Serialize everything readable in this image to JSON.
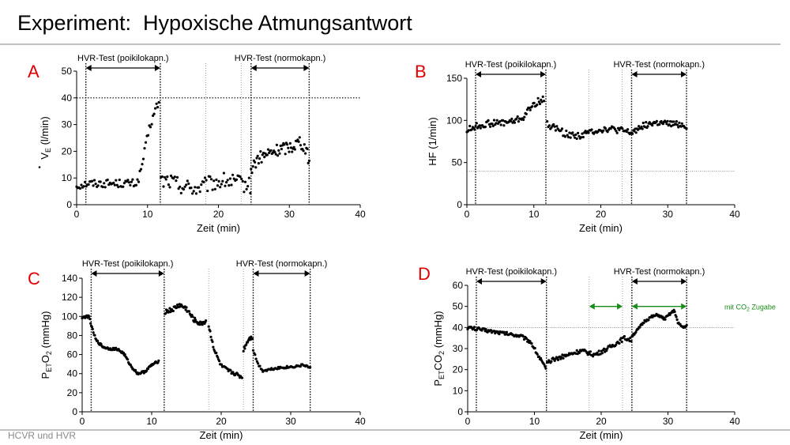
{
  "slide": {
    "title": "Experiment:  Hypoxische Atmungsantwort",
    "footer": "HCVR und HVR"
  },
  "chart_data": [
    {
      "panel": "A",
      "type": "scatter",
      "xlabel": "Zeit (min)",
      "ylabel_parts": [
        "V",
        "E",
        " (l/min)"
      ],
      "xlim": [
        0,
        40
      ],
      "ylim": [
        0,
        50
      ],
      "xticks": [
        0,
        10,
        20,
        30,
        40
      ],
      "yticks": [
        0,
        10,
        20,
        30,
        40,
        50
      ],
      "hline": 40,
      "vlines": [
        {
          "x": 1.3,
          "style": "dotted"
        },
        {
          "x": 11.8,
          "style": "dotted"
        },
        {
          "x": 18.2,
          "style": "faint"
        },
        {
          "x": 23.2,
          "style": "faint"
        },
        {
          "x": 24.6,
          "style": "dotted"
        },
        {
          "x": 32.8,
          "style": "dotted"
        }
      ],
      "annotations": [
        {
          "text": "HVR-Test (poikilokapn.)",
          "x1": 1.3,
          "x2": 11.8,
          "color": "#000000"
        },
        {
          "text": "HVR-Test (normokapn.)",
          "x1": 24.6,
          "x2": 32.8,
          "color": "#000000"
        }
      ],
      "segments": [
        {
          "x": [
            0,
            0.8,
            1.5,
            3,
            5,
            7,
            8.5,
            9.0,
            9.6,
            10.2,
            10.8,
            11.3,
            11.6
          ],
          "y": [
            7,
            7.5,
            8,
            8,
            8,
            8,
            8,
            12,
            20,
            28,
            33,
            37,
            38
          ],
          "spread": 1.5,
          "n": 70
        },
        {
          "x": [
            11.9,
            13,
            15,
            17,
            19,
            21,
            23,
            24.5
          ],
          "y": [
            9,
            9,
            7,
            6,
            8,
            9,
            8,
            7
          ],
          "spread": 3.0,
          "n": 72
        },
        {
          "x": [
            24.6,
            25.5,
            27,
            29,
            30.5,
            31.5,
            32.3,
            32.8
          ],
          "y": [
            13,
            17,
            19,
            21,
            22,
            24,
            21,
            16
          ],
          "spread": 2.4,
          "n": 62
        }
      ],
      "color": "#000000"
    },
    {
      "panel": "B",
      "type": "scatter",
      "xlabel": "Zeit (min)",
      "ylabel_parts": [
        "HF (1/min)"
      ],
      "xlim": [
        0,
        40
      ],
      "ylim": [
        0,
        150
      ],
      "xticks": [
        0,
        10,
        20,
        30,
        40
      ],
      "yticks": [
        0,
        50,
        100,
        150
      ],
      "hline": 40,
      "vlines": [
        {
          "x": 1.3,
          "style": "dotted"
        },
        {
          "x": 11.8,
          "style": "dotted"
        },
        {
          "x": 18.2,
          "style": "faint"
        },
        {
          "x": 23.2,
          "style": "faint"
        },
        {
          "x": 24.6,
          "style": "dotted"
        },
        {
          "x": 32.8,
          "style": "dotted"
        }
      ],
      "annotations": [
        {
          "text": "HVR-Test (poikilokapn.)",
          "x1": 1.3,
          "x2": 11.8,
          "color": "#000000"
        },
        {
          "text": "HVR-Test (normokapn.)",
          "x1": 24.6,
          "x2": 32.8,
          "color": "#000000"
        }
      ],
      "segments": [
        {
          "x": [
            0,
            1,
            3,
            5,
            7,
            8.5,
            9.5,
            10.5,
            11.5
          ],
          "y": [
            88,
            92,
            96,
            97,
            99,
            104,
            115,
            122,
            125
          ],
          "spread": 4,
          "n": 80
        },
        {
          "x": [
            12,
            13,
            15,
            17,
            19,
            21,
            23,
            24.5
          ],
          "y": [
            95,
            92,
            83,
            82,
            88,
            90,
            88,
            85
          ],
          "spread": 4,
          "n": 80
        },
        {
          "x": [
            24.6,
            26,
            28,
            30,
            32,
            32.8
          ],
          "y": [
            85,
            93,
            97,
            96,
            95,
            93
          ],
          "spread": 3.5,
          "n": 62
        }
      ],
      "color": "#000000"
    },
    {
      "panel": "C",
      "type": "scatter",
      "xlabel": "Zeit (min)",
      "ylabel_parts": [
        "P",
        "ET",
        "O",
        "2",
        " (mmHg)"
      ],
      "xlim": [
        0,
        40
      ],
      "ylim": [
        0,
        140
      ],
      "xticks": [
        0,
        10,
        20,
        30,
        40
      ],
      "yticks": [
        0,
        20,
        40,
        60,
        80,
        100,
        120,
        140
      ],
      "hline": null,
      "vlines": [
        {
          "x": 1.3,
          "style": "dotted"
        },
        {
          "x": 11.8,
          "style": "dotted"
        },
        {
          "x": 18.2,
          "style": "faint"
        },
        {
          "x": 23.2,
          "style": "faint"
        },
        {
          "x": 24.6,
          "style": "dotted"
        },
        {
          "x": 32.8,
          "style": "dotted"
        }
      ],
      "annotations": [
        {
          "text": "HVR-Test (poikilokapn.)",
          "x1": 1.3,
          "x2": 11.8,
          "color": "#000000"
        },
        {
          "text": "HVR-Test (normokapn.)",
          "x1": 24.6,
          "x2": 32.8,
          "color": "#000000"
        }
      ],
      "segments": [
        {
          "x": [
            0,
            1.0,
            1.4,
            2,
            3,
            4,
            5,
            6,
            7,
            8,
            9,
            10,
            11
          ],
          "y": [
            99,
            100,
            88,
            75,
            68,
            66,
            66,
            61,
            48,
            40,
            42,
            49,
            53
          ],
          "spread": 1.2,
          "n": 110
        },
        {
          "x": [
            11.9,
            13,
            14,
            15,
            16,
            17,
            17.8
          ],
          "y": [
            105,
            107,
            112,
            108,
            97,
            92,
            95
          ],
          "spread": 2.5,
          "n": 60
        },
        {
          "x": [
            18.2,
            19,
            20,
            21,
            22,
            23
          ],
          "y": [
            90,
            65,
            48,
            43,
            40,
            36
          ],
          "spread": 2,
          "n": 45
        },
        {
          "x": [
            23.2,
            24,
            24.5
          ],
          "y": [
            65,
            77,
            78
          ],
          "spread": 2,
          "n": 14
        },
        {
          "x": [
            24.6,
            25.3,
            26,
            28,
            30,
            32,
            32.8
          ],
          "y": [
            65,
            50,
            43,
            46,
            47,
            49,
            46
          ],
          "spread": 1.2,
          "n": 60
        }
      ],
      "color": "#000000"
    },
    {
      "panel": "D",
      "type": "scatter",
      "xlabel": "Zeit (min)",
      "ylabel_parts": [
        "P",
        "ET",
        "CO",
        "2",
        " (mmHg)"
      ],
      "xlim": [
        0,
        40
      ],
      "ylim": [
        0,
        60
      ],
      "xticks": [
        0,
        10,
        20,
        30,
        40
      ],
      "yticks": [
        0,
        10,
        20,
        30,
        40,
        50,
        60
      ],
      "hline": 40,
      "vlines": [
        {
          "x": 1.3,
          "style": "dotted"
        },
        {
          "x": 11.8,
          "style": "dotted"
        },
        {
          "x": 18.2,
          "style": "faint"
        },
        {
          "x": 23.2,
          "style": "faint"
        },
        {
          "x": 24.6,
          "style": "dotted"
        },
        {
          "x": 32.8,
          "style": "dotted"
        }
      ],
      "annotations": [
        {
          "text": "HVR-Test (poikilokapn.)",
          "x1": 1.3,
          "x2": 11.8,
          "color": "#000000"
        },
        {
          "text": "HVR-Test (normokapn.)",
          "x1": 24.6,
          "x2": 32.8,
          "color": "#000000"
        },
        {
          "text": "",
          "x1": 18.2,
          "x2": 23.2,
          "color": "#1a8a1a",
          "level": 2
        },
        {
          "text": "",
          "x1": 24.6,
          "x2": 32.8,
          "color": "#1a8a1a",
          "level": 2
        }
      ],
      "side_note_parts": [
        "mit CO",
        "2",
        " Zugabe"
      ],
      "side_note_color": "#1a8a1a",
      "segments": [
        {
          "x": [
            0,
            2,
            4,
            6,
            8,
            9.5,
            10.5,
            11.3,
            11.7
          ],
          "y": [
            40,
            39,
            38,
            37,
            36,
            33,
            27,
            23,
            20
          ],
          "spread": 0.8,
          "n": 95
        },
        {
          "x": [
            11.9,
            13,
            15,
            17,
            19,
            21,
            22.5,
            23.5,
            24.5
          ],
          "y": [
            23,
            25,
            27,
            29,
            27,
            30,
            33,
            35,
            34
          ],
          "spread": 1.0,
          "n": 100
        },
        {
          "x": [
            24.6,
            25.5,
            26.5,
            27.5,
            28.5,
            29.5,
            30.5,
            31,
            31.5,
            32.3,
            32.8
          ],
          "y": [
            36,
            39,
            43,
            45,
            46,
            44,
            47,
            48,
            42,
            40,
            41
          ],
          "spread": 0.6,
          "n": 70
        }
      ],
      "color": "#000000"
    }
  ]
}
